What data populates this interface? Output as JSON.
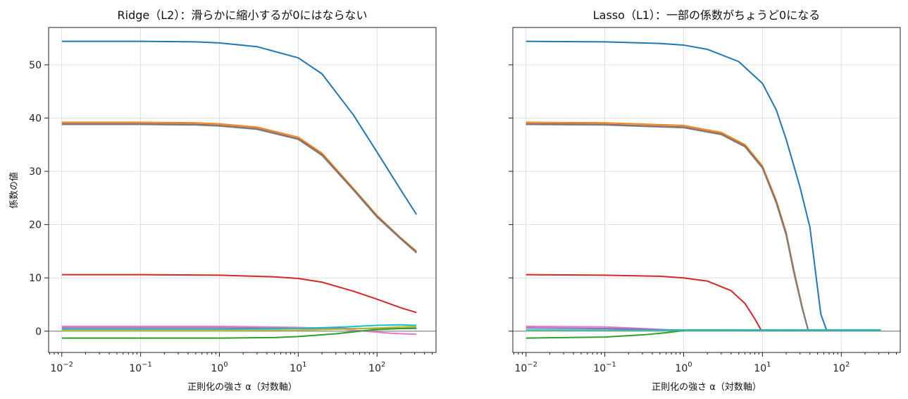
{
  "chart_data": [
    {
      "type": "line",
      "title": "Ridge（L2）：滑らかに縮小するが0にはならない",
      "xlabel": "正則化の強さ α（対数軸）",
      "ylabel": "係数の値",
      "xscale": "log",
      "xlim": [
        0.0068,
        560
      ],
      "ylim": [
        -4,
        57
      ],
      "xticks": [
        0.01,
        0.1,
        1,
        10,
        100
      ],
      "xtick_labels": [
        {
          "base": "10",
          "exp": "−2"
        },
        {
          "base": "10",
          "exp": "−1"
        },
        {
          "base": "10",
          "exp": "0"
        },
        {
          "base": "10",
          "exp": "1"
        },
        {
          "base": "10",
          "exp": "2"
        }
      ],
      "yticks": [
        0,
        10,
        20,
        30,
        40,
        50
      ],
      "ytick_labels": [
        "0",
        "10",
        "20",
        "30",
        "40",
        "50"
      ],
      "grid": true,
      "zero_line": true,
      "series": [
        {
          "color": "#1f77b4",
          "points": [
            [
              0.01,
              54.4
            ],
            [
              0.1,
              54.4
            ],
            [
              0.5,
              54.3
            ],
            [
              1,
              54.1
            ],
            [
              3,
              53.4
            ],
            [
              10,
              51.3
            ],
            [
              20,
              48.3
            ],
            [
              50,
              40.6
            ],
            [
              100,
              33.6
            ],
            [
              200,
              26.5
            ],
            [
              316,
              21.9
            ]
          ]
        },
        {
          "color": "#ff7f0e",
          "points": [
            [
              0.01,
              39.2
            ],
            [
              0.1,
              39.2
            ],
            [
              0.5,
              39.1
            ],
            [
              1,
              38.9
            ],
            [
              3,
              38.3
            ],
            [
              10,
              36.4
            ],
            [
              20,
              33.4
            ],
            [
              50,
              26.8
            ],
            [
              100,
              21.7
            ],
            [
              200,
              17.5
            ],
            [
              316,
              15.0
            ]
          ]
        },
        {
          "color": "#8c564b",
          "points": [
            [
              0.01,
              38.9
            ],
            [
              0.1,
              38.9
            ],
            [
              0.5,
              38.8
            ],
            [
              1,
              38.6
            ],
            [
              3,
              38.0
            ],
            [
              10,
              36.1
            ],
            [
              20,
              33.1
            ],
            [
              50,
              26.6
            ],
            [
              100,
              21.5
            ],
            [
              200,
              17.4
            ],
            [
              316,
              14.8
            ]
          ]
        },
        {
          "color": "#7f7f7f",
          "points": [
            [
              0.01,
              38.8
            ],
            [
              0.1,
              38.8
            ],
            [
              0.5,
              38.7
            ],
            [
              1,
              38.5
            ],
            [
              3,
              37.9
            ],
            [
              10,
              36.0
            ],
            [
              20,
              33.0
            ],
            [
              50,
              26.5
            ],
            [
              100,
              21.4
            ],
            [
              200,
              17.3
            ],
            [
              316,
              14.7
            ]
          ]
        },
        {
          "color": "#d62728",
          "points": [
            [
              0.01,
              10.6
            ],
            [
              0.1,
              10.6
            ],
            [
              1,
              10.5
            ],
            [
              5,
              10.2
            ],
            [
              10,
              9.9
            ],
            [
              20,
              9.2
            ],
            [
              50,
              7.5
            ],
            [
              100,
              6.0
            ],
            [
              200,
              4.4
            ],
            [
              316,
              3.5
            ]
          ]
        },
        {
          "color": "#e377c2",
          "points": [
            [
              0.01,
              0.9
            ],
            [
              1,
              0.9
            ],
            [
              10,
              0.7
            ],
            [
              30,
              0.5
            ],
            [
              70,
              0.0
            ],
            [
              150,
              -0.4
            ],
            [
              316,
              -0.6
            ]
          ]
        },
        {
          "color": "#9467bd",
          "points": [
            [
              0.01,
              0.6
            ],
            [
              1,
              0.6
            ],
            [
              10,
              0.5
            ],
            [
              50,
              0.5
            ],
            [
              150,
              0.5
            ],
            [
              316,
              0.5
            ]
          ]
        },
        {
          "color": "#17becf",
          "points": [
            [
              0.01,
              0.3
            ],
            [
              1,
              0.3
            ],
            [
              10,
              0.5
            ],
            [
              40,
              0.8
            ],
            [
              100,
              1.1
            ],
            [
              200,
              1.2
            ],
            [
              316,
              1.1
            ]
          ]
        },
        {
          "color": "#bcbd22",
          "points": [
            [
              0.01,
              0.1
            ],
            [
              1,
              0.1
            ],
            [
              10,
              0.2
            ],
            [
              40,
              0.4
            ],
            [
              100,
              0.6
            ],
            [
              200,
              0.8
            ],
            [
              316,
              0.9
            ]
          ]
        },
        {
          "color": "#2ca02c",
          "points": [
            [
              0.01,
              -1.3
            ],
            [
              1,
              -1.3
            ],
            [
              5,
              -1.2
            ],
            [
              10,
              -1.0
            ],
            [
              30,
              -0.5
            ],
            [
              60,
              0.0
            ],
            [
              100,
              0.3
            ],
            [
              200,
              0.5
            ],
            [
              316,
              0.6
            ]
          ]
        }
      ]
    },
    {
      "type": "line",
      "title": "Lasso（L1）：一部の係数がちょうど0になる",
      "xlabel": "正則化の強さ α（対数軸）",
      "ylabel": "",
      "xscale": "log",
      "xlim": [
        0.0068,
        560
      ],
      "ylim": [
        -4,
        57
      ],
      "xticks": [
        0.01,
        0.1,
        1,
        10,
        100
      ],
      "xtick_labels": [
        {
          "base": "10",
          "exp": "−2"
        },
        {
          "base": "10",
          "exp": "−1"
        },
        {
          "base": "10",
          "exp": "0"
        },
        {
          "base": "10",
          "exp": "1"
        },
        {
          "base": "10",
          "exp": "2"
        }
      ],
      "yticks": [
        0,
        10,
        20,
        30,
        40,
        50
      ],
      "ytick_labels": [
        "",
        "",
        "",
        "",
        "",
        ""
      ],
      "grid": true,
      "zero_line": true,
      "series": [
        {
          "color": "#1f77b4",
          "points": [
            [
              0.01,
              54.4
            ],
            [
              0.1,
              54.3
            ],
            [
              0.5,
              54.0
            ],
            [
              1,
              53.7
            ],
            [
              2,
              52.9
            ],
            [
              5,
              50.6
            ],
            [
              10,
              46.5
            ],
            [
              15,
              41.5
            ],
            [
              20,
              36.0
            ],
            [
              30,
              27.0
            ],
            [
              40,
              19.5
            ],
            [
              55,
              3.2
            ],
            [
              65,
              0.2
            ],
            [
              316,
              0.2
            ]
          ]
        },
        {
          "color": "#ff7f0e",
          "points": [
            [
              0.01,
              39.2
            ],
            [
              0.1,
              39.1
            ],
            [
              1,
              38.6
            ],
            [
              3,
              37.3
            ],
            [
              6,
              35.0
            ],
            [
              10,
              31.0
            ],
            [
              15,
              24.5
            ],
            [
              20,
              18.5
            ],
            [
              25,
              11.5
            ],
            [
              32,
              4.5
            ],
            [
              38,
              0.2
            ],
            [
              316,
              0.2
            ]
          ]
        },
        {
          "color": "#8c564b",
          "points": [
            [
              0.01,
              38.9
            ],
            [
              0.1,
              38.8
            ],
            [
              1,
              38.3
            ],
            [
              3,
              37.0
            ],
            [
              6,
              34.7
            ],
            [
              10,
              30.7
            ],
            [
              15,
              24.2
            ],
            [
              20,
              18.2
            ],
            [
              25,
              11.2
            ],
            [
              32,
              4.3
            ],
            [
              38,
              0.2
            ],
            [
              316,
              0.2
            ]
          ]
        },
        {
          "color": "#7f7f7f",
          "points": [
            [
              0.01,
              38.8
            ],
            [
              0.1,
              38.7
            ],
            [
              1,
              38.2
            ],
            [
              3,
              36.9
            ],
            [
              6,
              34.6
            ],
            [
              10,
              30.6
            ],
            [
              15,
              24.0
            ],
            [
              20,
              18.0
            ],
            [
              25,
              11.0
            ],
            [
              32,
              4.2
            ],
            [
              38,
              0.2
            ],
            [
              316,
              0.2
            ]
          ]
        },
        {
          "color": "#d62728",
          "points": [
            [
              0.01,
              10.6
            ],
            [
              0.1,
              10.5
            ],
            [
              0.5,
              10.3
            ],
            [
              1,
              10.0
            ],
            [
              2,
              9.4
            ],
            [
              4,
              7.6
            ],
            [
              6,
              5.2
            ],
            [
              8,
              2.3
            ],
            [
              9.6,
              0.2
            ],
            [
              316,
              0.2
            ]
          ]
        },
        {
          "color": "#e377c2",
          "points": [
            [
              0.01,
              0.9
            ],
            [
              0.1,
              0.8
            ],
            [
              0.3,
              0.5
            ],
            [
              0.7,
              0.2
            ],
            [
              1.1,
              0.2
            ],
            [
              316,
              0.2
            ]
          ]
        },
        {
          "color": "#9467bd",
          "points": [
            [
              0.01,
              0.6
            ],
            [
              0.1,
              0.5
            ],
            [
              0.4,
              0.3
            ],
            [
              1.0,
              0.2
            ],
            [
              316,
              0.2
            ]
          ]
        },
        {
          "color": "#bcbd22",
          "points": [
            [
              0.01,
              0.1
            ],
            [
              316,
              0.2
            ]
          ]
        },
        {
          "color": "#2ca02c",
          "points": [
            [
              0.01,
              -1.3
            ],
            [
              0.1,
              -1.1
            ],
            [
              0.3,
              -0.7
            ],
            [
              0.6,
              -0.3
            ],
            [
              1.1,
              0.2
            ],
            [
              316,
              0.2
            ]
          ]
        },
        {
          "color": "#17becf",
          "points": [
            [
              0.01,
              0.2
            ],
            [
              0.5,
              0.2
            ],
            [
              1.2,
              0.2
            ],
            [
              316,
              0.2
            ]
          ]
        }
      ]
    }
  ]
}
